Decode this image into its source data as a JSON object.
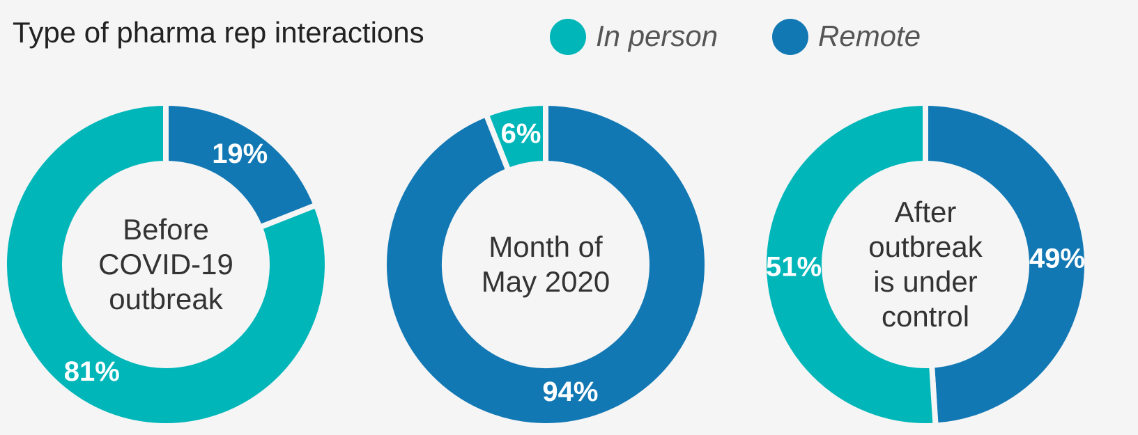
{
  "title": "Type of pharma rep interactions",
  "chart_data": [
    {
      "type": "donut",
      "title": "Before COVID-19 outbreak",
      "categories": [
        "In person",
        "Remote"
      ],
      "colors": [
        "#00b6b9",
        "#1278b4"
      ],
      "values": [
        81,
        19
      ],
      "value_labels": [
        "81%",
        "19%"
      ]
    },
    {
      "type": "donut",
      "title": "Month of May 2020",
      "categories": [
        "In person",
        "Remote"
      ],
      "colors": [
        "#00b6b9",
        "#1278b4"
      ],
      "values": [
        6,
        94
      ],
      "value_labels": [
        "6%",
        "94%"
      ]
    },
    {
      "type": "donut",
      "title": "After outbreak is under control",
      "categories": [
        "In person",
        "Remote"
      ],
      "colors": [
        "#00b6b9",
        "#1278b4"
      ],
      "values": [
        51,
        49
      ],
      "value_labels": [
        "51%",
        "49%"
      ]
    }
  ]
}
